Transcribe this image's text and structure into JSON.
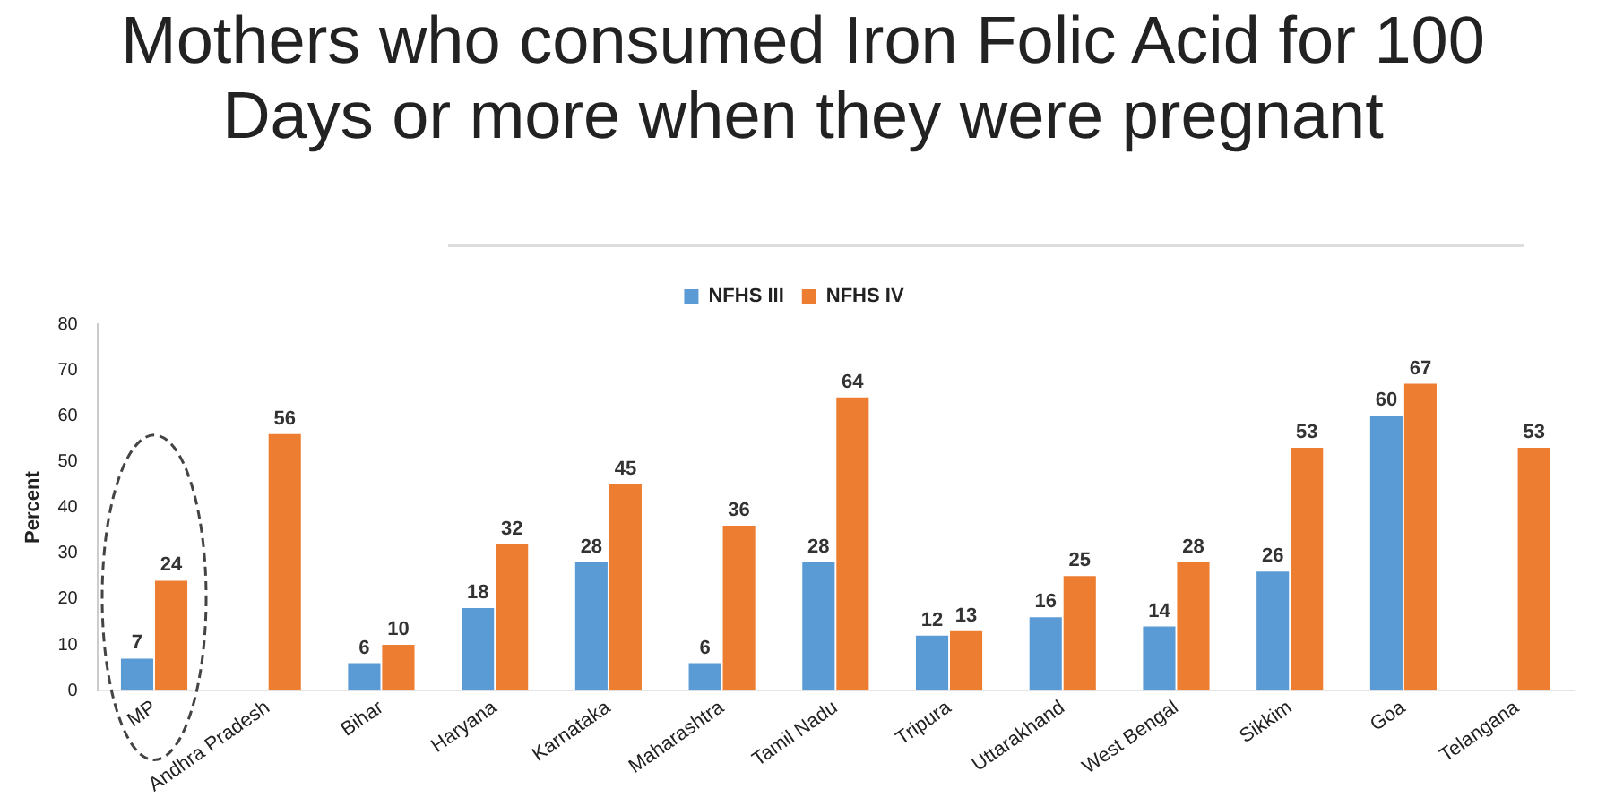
{
  "chart_data": {
    "type": "bar",
    "title": "Mothers who consumed Iron Folic Acid for 100 Days or more when they were pregnant",
    "ylabel": "Percent",
    "categories": [
      "MP",
      "Andhra Pradesh",
      "Bihar",
      "Haryana",
      "Karnataka",
      "Maharashtra",
      "Tamil Nadu",
      "Tripura",
      "Uttarakhand",
      "West Bengal",
      "Sikkim",
      "Goa",
      "Telangana"
    ],
    "series": [
      {
        "name": "NFHS III",
        "color": "#5b9bd5",
        "values": [
          7,
          null,
          6,
          18,
          28,
          6,
          28,
          12,
          16,
          14,
          26,
          60,
          null
        ]
      },
      {
        "name": "NFHS IV",
        "color": "#ed7d31",
        "values": [
          24,
          56,
          10,
          32,
          45,
          36,
          64,
          13,
          25,
          28,
          53,
          67,
          53
        ]
      }
    ],
    "ylim": [
      0,
      80
    ],
    "yticks": [
      0,
      10,
      20,
      30,
      40,
      50,
      60,
      70,
      80
    ],
    "grid": false,
    "legend": "top",
    "data_labels": true
  }
}
